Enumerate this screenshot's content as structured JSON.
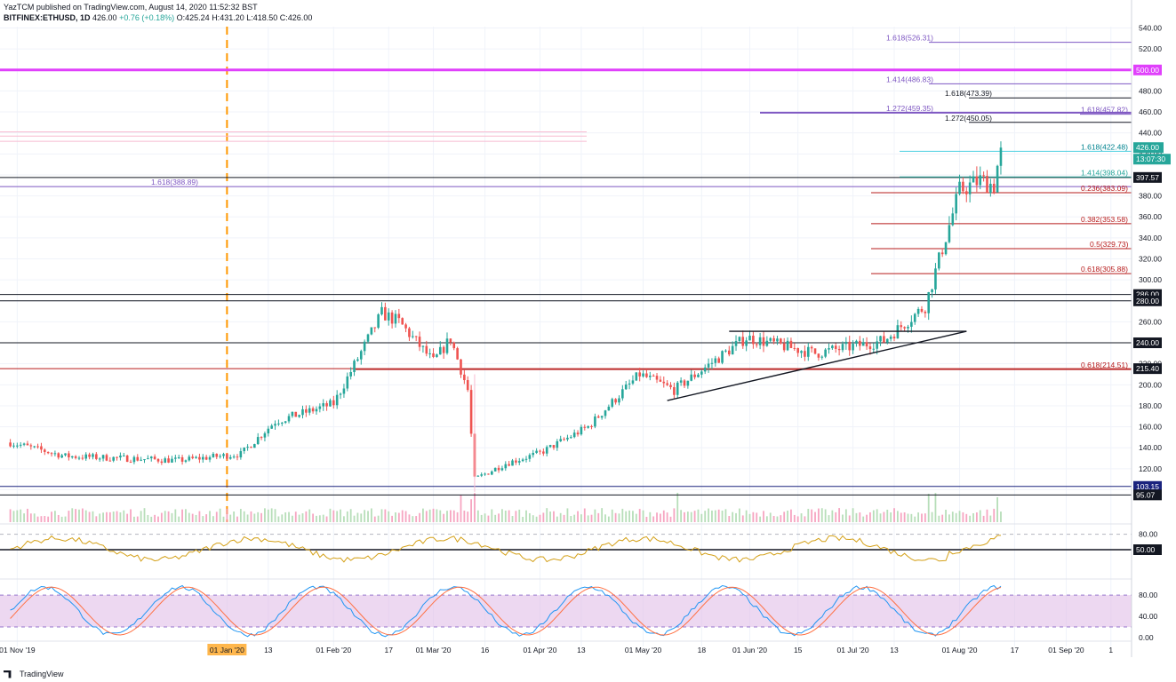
{
  "header": {
    "line1": "YazTCM published on TradingView.com, August 14, 2020 11:52:32 BST",
    "symbol": "BITFINEX:ETHUSD, 1D",
    "last": "426.00",
    "change": "+0.76 (+0.18%)",
    "open": "O:425.24",
    "high": "H:431.20",
    "low": "L:418.50",
    "close": "C:426.00"
  },
  "footer": {
    "brand": "TradingView"
  },
  "colors": {
    "up": "#26a69a",
    "down": "#ef5350",
    "fib": "#7e57c2",
    "magenta": "#e040fb",
    "price_badge": "#26a69a",
    "level": "#131722",
    "red_level": "#b71c1c"
  },
  "chart_data": {
    "type": "candlestick",
    "title": "",
    "ylim": [
      95,
      540
    ],
    "yticks": [
      "540.00",
      "520.00",
      "500.00",
      "480.00",
      "460.00",
      "440.00",
      "420.00",
      "400.00",
      "380.00",
      "360.00",
      "340.00",
      "320.00",
      "300.00",
      "280.00",
      "260.00",
      "240.00",
      "220.00",
      "200.00",
      "180.00",
      "160.00",
      "140.00",
      "120.00",
      "100.00"
    ],
    "xticks": [
      "01 Nov '19",
      "01 Jan '20",
      "13",
      "01 Feb '20",
      "17",
      "01 Mar '20",
      "16",
      "01 Apr '20",
      "13",
      "01 May '20",
      "18",
      "01 Jun '20",
      "15",
      "01 Jul '20",
      "13",
      "01 Aug '20",
      "17",
      "01 Sep '20",
      "1"
    ],
    "price_anchors": [
      {
        "date": "2019-10-30",
        "close": 145
      },
      {
        "date": "2019-11-15",
        "close": 132
      },
      {
        "date": "2019-12-18",
        "close": 128
      },
      {
        "date": "2020-01-05",
        "close": 134
      },
      {
        "date": "2020-01-15",
        "close": 165
      },
      {
        "date": "2020-02-01",
        "close": 182
      },
      {
        "date": "2020-02-15",
        "close": 268
      },
      {
        "date": "2020-02-20",
        "close": 260
      },
      {
        "date": "2020-03-01",
        "close": 222
      },
      {
        "date": "2020-03-06",
        "close": 244
      },
      {
        "date": "2020-03-11",
        "close": 195
      },
      {
        "date": "2020-03-13",
        "close": 110
      },
      {
        "date": "2020-03-22",
        "close": 125
      },
      {
        "date": "2020-04-01",
        "close": 135
      },
      {
        "date": "2020-04-15",
        "close": 160
      },
      {
        "date": "2020-04-30",
        "close": 210
      },
      {
        "date": "2020-05-10",
        "close": 195
      },
      {
        "date": "2020-05-31",
        "close": 245
      },
      {
        "date": "2020-06-20",
        "close": 230
      },
      {
        "date": "2020-07-10",
        "close": 242
      },
      {
        "date": "2020-07-22",
        "close": 275
      },
      {
        "date": "2020-08-01",
        "close": 385
      },
      {
        "date": "2020-08-07",
        "close": 395
      },
      {
        "date": "2020-08-11",
        "close": 390
      },
      {
        "date": "2020-08-13",
        "close": 426
      }
    ],
    "horizontal_levels": [
      {
        "price": 500.0,
        "label": "500.00",
        "color": "#e040fb"
      },
      {
        "price": 397.57,
        "label": "397.57",
        "color": "#131722"
      },
      {
        "price": 286.0,
        "label": "286.00",
        "color": "#131722"
      },
      {
        "price": 280.0,
        "label": "280.00",
        "color": "#131722"
      },
      {
        "price": 240.0,
        "label": "240.00",
        "color": "#131722"
      },
      {
        "price": 215.4,
        "label": "215.40",
        "color": "#b71c1c"
      },
      {
        "price": 103.15,
        "label": "103.15",
        "color": "#1a237e"
      },
      {
        "price": 95.07,
        "label": "95.07",
        "color": "#131722"
      }
    ],
    "fib_labels": [
      "1.618(526.31)",
      "1.414(486.83)",
      "1.618(473.39)",
      "1.272(459.35)",
      "1.618(457.82)",
      "1.272(450.05)",
      "1.618(422.48)",
      "1.414(398.04)",
      "1.618(388.89)",
      "0.236(383.09)",
      "0.382(353.58)",
      "0.5(329.73)",
      "0.618(305.88)",
      "0.618(214.51)"
    ],
    "price_badges": [
      "426.00",
      "13:07:30"
    ],
    "rsi": {
      "ylim": [
        0,
        100
      ],
      "ticks": [
        "80.00",
        "50.00"
      ]
    },
    "stoch": {
      "ylim": [
        0,
        100
      ],
      "ticks": [
        "80.00",
        "40.00",
        "0.00"
      ]
    }
  }
}
